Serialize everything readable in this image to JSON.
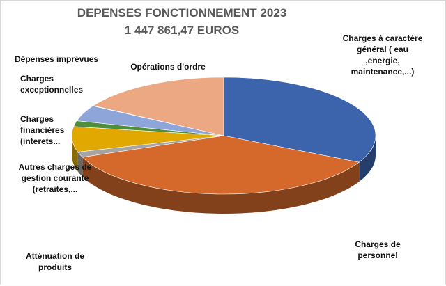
{
  "chart_data": {
    "type": "pie",
    "title": "DEPENSES FONCTIONNEMENT 2023",
    "subtitle": "1 447 861,47 EUROS",
    "slices": [
      {
        "label": [
          "Charges à caractère",
          "général ( eau",
          ",energie,",
          "maintenance,...)"
        ],
        "value": 32.5,
        "color": "#3b64ad"
      },
      {
        "label": [
          "Charges de",
          "personnel"
        ],
        "value": 36.5,
        "color": "#d4692b"
      },
      {
        "label": [
          "Atténuation de",
          "produits"
        ],
        "value": 1.5,
        "color": "#a5a5a5"
      },
      {
        "label": [
          "Autres charges de",
          "gestion courante",
          "(retraites,..."
        ],
        "value": 7.0,
        "color": "#e0a800"
      },
      {
        "label": [
          "Charges",
          "financières",
          "(interets..."
        ],
        "value": 1.6,
        "color": "#4f8f3c"
      },
      {
        "label": [
          "Charges",
          "exceptionnelles"
        ],
        "value": 4.4,
        "color": "#8ea5d9"
      },
      {
        "label": [
          "Dépenses imprévues"
        ],
        "value": 0.1,
        "color": "#d0d6e4"
      },
      {
        "label": [
          "Opérations d'ordre"
        ],
        "value": 16.4,
        "color": "#eca883"
      }
    ]
  }
}
